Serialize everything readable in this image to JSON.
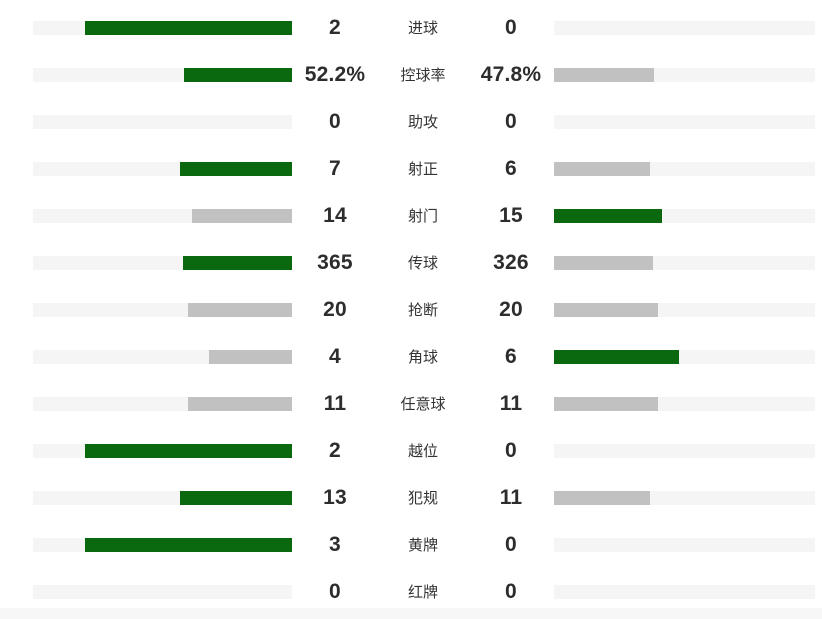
{
  "chart_data": {
    "type": "bar",
    "title": "",
    "description": "Paired horizontal bar chart comparing football match statistics between home (left) and away (right) team; bars grow outward from the center",
    "layout": {
      "bar_max_fraction_of_track": 0.8,
      "home_bars_anchor": "right",
      "away_bars_anchor": "left"
    },
    "colors": {
      "leading_bar": "#0a680f",
      "trailing_bar": "#c1c1c1",
      "track": "#f5f5f5",
      "value_text": "#2d2d2d",
      "label_text": "#333333",
      "bottom_strip": "#f7f7f7"
    },
    "categories": [
      "进球",
      "控球率",
      "助攻",
      "射正",
      "射门",
      "传球",
      "抢断",
      "角球",
      "任意球",
      "越位",
      "犯规",
      "黄牌",
      "红牌"
    ],
    "series": [
      {
        "name": "home",
        "values": [
          2,
          52.2,
          0,
          7,
          14,
          365,
          20,
          4,
          11,
          2,
          13,
          3,
          0
        ]
      },
      {
        "name": "away",
        "values": [
          0,
          47.8,
          0,
          6,
          15,
          326,
          20,
          6,
          11,
          0,
          11,
          0,
          0
        ]
      }
    ],
    "rows": [
      {
        "label": "进球",
        "home": "2",
        "away": "0",
        "home_value": 2,
        "away_value": 0
      },
      {
        "label": "控球率",
        "home": "52.2%",
        "away": "47.8%",
        "home_value": 52.2,
        "away_value": 47.8
      },
      {
        "label": "助攻",
        "home": "0",
        "away": "0",
        "home_value": 0,
        "away_value": 0
      },
      {
        "label": "射正",
        "home": "7",
        "away": "6",
        "home_value": 7,
        "away_value": 6
      },
      {
        "label": "射门",
        "home": "14",
        "away": "15",
        "home_value": 14,
        "away_value": 15
      },
      {
        "label": "传球",
        "home": "365",
        "away": "326",
        "home_value": 365,
        "away_value": 326
      },
      {
        "label": "抢断",
        "home": "20",
        "away": "20",
        "home_value": 20,
        "away_value": 20
      },
      {
        "label": "角球",
        "home": "4",
        "away": "6",
        "home_value": 4,
        "away_value": 6
      },
      {
        "label": "任意球",
        "home": "11",
        "away": "11",
        "home_value": 11,
        "away_value": 11
      },
      {
        "label": "越位",
        "home": "2",
        "away": "0",
        "home_value": 2,
        "away_value": 0
      },
      {
        "label": "犯规",
        "home": "13",
        "away": "11",
        "home_value": 13,
        "away_value": 11
      },
      {
        "label": "黄牌",
        "home": "3",
        "away": "0",
        "home_value": 3,
        "away_value": 0
      },
      {
        "label": "红牌",
        "home": "0",
        "away": "0",
        "home_value": 0,
        "away_value": 0
      }
    ]
  }
}
